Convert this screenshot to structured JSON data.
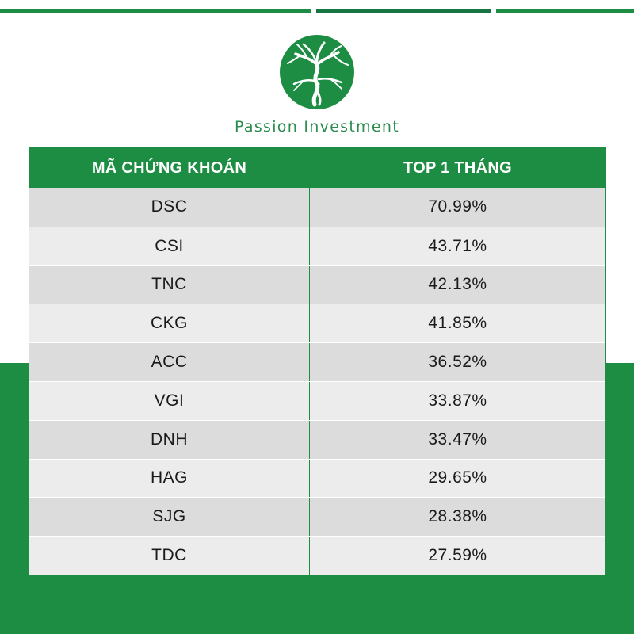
{
  "brand": {
    "name": "Passion Investment"
  },
  "colors": {
    "primary_green": "#1d8d43",
    "row_dark": "#dcdcdc",
    "row_light": "#ececec"
  },
  "table": {
    "headers": [
      "MÃ CHỨNG KHOÁN",
      "TOP 1 THÁNG"
    ],
    "rows": [
      {
        "code": "DSC",
        "value": "70.99%"
      },
      {
        "code": "CSI",
        "value": "43.71%"
      },
      {
        "code": "TNC",
        "value": "42.13%"
      },
      {
        "code": "CKG",
        "value": "41.85%"
      },
      {
        "code": "ACC",
        "value": "36.52%"
      },
      {
        "code": "VGI",
        "value": "33.87%"
      },
      {
        "code": "DNH",
        "value": "33.47%"
      },
      {
        "code": "HAG",
        "value": "29.65%"
      },
      {
        "code": "SJG",
        "value": "28.38%"
      },
      {
        "code": "TDC",
        "value": "27.59%"
      }
    ]
  }
}
